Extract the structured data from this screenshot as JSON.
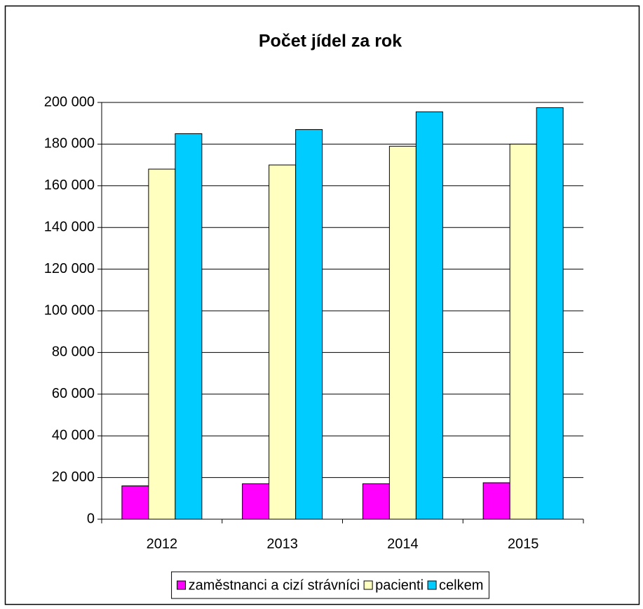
{
  "chart_data": {
    "type": "bar",
    "title": "Počet jídel za rok",
    "categories": [
      "2012",
      "2013",
      "2014",
      "2015"
    ],
    "series": [
      {
        "name": "zaměstnanci a cizí strávníci",
        "color": "#ff00ff",
        "values": [
          16000,
          17000,
          17000,
          17500
        ]
      },
      {
        "name": "pacienti",
        "color": "#ffffc0",
        "values": [
          168000,
          170000,
          179000,
          180000
        ]
      },
      {
        "name": "celkem",
        "color": "#00ccff",
        "values": [
          185000,
          187000,
          195500,
          197500
        ]
      }
    ],
    "ylim": [
      0,
      200000
    ],
    "yticks": [
      0,
      {
        "value": 20000,
        "label": "20 000"
      },
      {
        "value": 40000,
        "label": "40 000"
      },
      {
        "value": 60000,
        "label": "60 000"
      },
      {
        "value": 80000,
        "label": "80 000"
      },
      {
        "value": 100000,
        "label": "100 000"
      },
      {
        "value": 120000,
        "label": "120 000"
      },
      {
        "value": 140000,
        "label": "140 000"
      },
      {
        "value": 160000,
        "label": "160 000"
      },
      {
        "value": 180000,
        "label": "180 000"
      },
      {
        "value": 200000,
        "label": "200 000"
      }
    ],
    "grid": true,
    "legend": "bottom"
  }
}
